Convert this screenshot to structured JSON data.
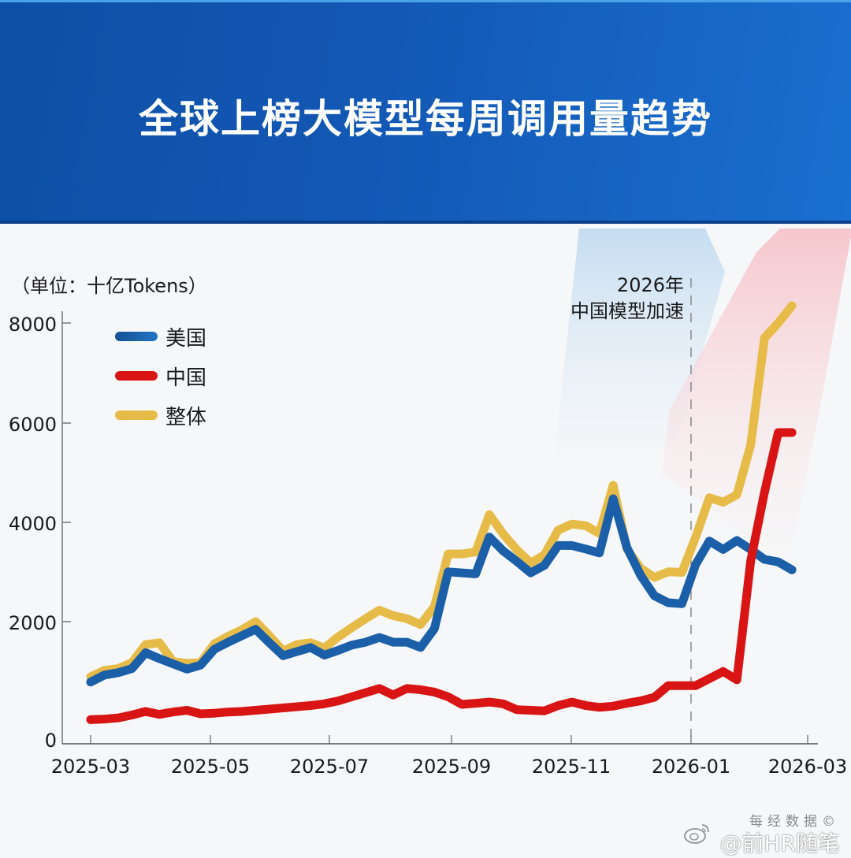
{
  "header": {
    "title": "全球上榜大模型每周调用量趋势"
  },
  "chart": {
    "unit_label": "（单位：十亿Tokens）",
    "annotation_line1": "2026年",
    "annotation_line2": "中国模型加速",
    "legend": [
      {
        "label": "美国",
        "color": "#1a5fa8"
      },
      {
        "label": "中国",
        "color": "#d81414"
      },
      {
        "label": "整体",
        "color": "#e6bb47"
      }
    ]
  },
  "watermark": {
    "top": "每经数据©",
    "bottom": "@前HR随笔"
  },
  "chart_data": {
    "type": "line",
    "title": "全球上榜大模型每周调用量趋势",
    "xlabel": "",
    "ylabel": "（单位：十亿Tokens）",
    "ylim": [
      0,
      8000
    ],
    "yticks": [
      0,
      2000,
      4000,
      6000,
      8000
    ],
    "xticks": [
      "2025-03",
      "2025-05",
      "2025-07",
      "2025-09",
      "2025-11",
      "2026-01",
      "2026-03"
    ],
    "grid": false,
    "legend_position": "upper left",
    "annotations": [
      {
        "text": "2026年 中国模型加速",
        "x": "2026-01",
        "style": "dashed vertical line"
      }
    ],
    "x": [
      "2025-03-01",
      "2025-03-08",
      "2025-03-15",
      "2025-03-22",
      "2025-03-29",
      "2025-04-05",
      "2025-04-12",
      "2025-04-19",
      "2025-04-26",
      "2025-05-03",
      "2025-05-10",
      "2025-05-17",
      "2025-05-24",
      "2025-05-31",
      "2025-06-07",
      "2025-06-14",
      "2025-06-21",
      "2025-06-28",
      "2025-07-05",
      "2025-07-12",
      "2025-07-19",
      "2025-07-26",
      "2025-08-02",
      "2025-08-09",
      "2025-08-16",
      "2025-08-23",
      "2025-08-30",
      "2025-09-06",
      "2025-09-13",
      "2025-09-20",
      "2025-09-27",
      "2025-10-04",
      "2025-10-11",
      "2025-10-18",
      "2025-10-25",
      "2025-11-01",
      "2025-11-08",
      "2025-11-15",
      "2025-11-22",
      "2025-11-29",
      "2025-12-06",
      "2025-12-13",
      "2025-12-20",
      "2025-12-27",
      "2026-01-03",
      "2026-01-10",
      "2026-01-17",
      "2026-01-24",
      "2026-01-31",
      "2026-02-07",
      "2026-02-14",
      "2026-02-21"
    ],
    "series": [
      {
        "name": "美国",
        "color": "#1a5fa8",
        "values": [
          970,
          1090,
          1130,
          1200,
          1470,
          1370,
          1280,
          1190,
          1260,
          1530,
          1650,
          1760,
          1870,
          1640,
          1420,
          1490,
          1560,
          1430,
          1510,
          1600,
          1650,
          1730,
          1650,
          1650,
          1560,
          1880,
          3000,
          2980,
          2960,
          3700,
          3420,
          3210,
          2980,
          3130,
          3530,
          3530,
          3460,
          3380,
          4470,
          3490,
          2930,
          2520,
          2380,
          2360,
          3150,
          3620,
          3450,
          3630,
          3450,
          3250,
          3200,
          3040
        ]
      },
      {
        "name": "中国",
        "color": "#d81414",
        "values": [
          330,
          340,
          360,
          410,
          470,
          420,
          460,
          490,
          430,
          440,
          460,
          470,
          490,
          510,
          530,
          550,
          570,
          600,
          650,
          720,
          790,
          860,
          750,
          860,
          840,
          800,
          720,
          590,
          610,
          630,
          600,
          500,
          490,
          480,
          570,
          630,
          570,
          540,
          560,
          610,
          650,
          710,
          910,
          910,
          910,
          1030,
          1150,
          1010,
          3220,
          4600,
          5800,
          5800
        ]
      },
      {
        "name": "整体",
        "color": "#e6bb47",
        "values": [
          1060,
          1170,
          1200,
          1300,
          1610,
          1640,
          1320,
          1290,
          1300,
          1620,
          1750,
          1860,
          2000,
          1760,
          1500,
          1610,
          1640,
          1550,
          1740,
          1900,
          2060,
          2230,
          2120,
          2060,
          1950,
          2300,
          3360,
          3360,
          3400,
          4150,
          3760,
          3440,
          3180,
          3340,
          3840,
          3960,
          3930,
          3770,
          4740,
          3460,
          3070,
          2890,
          3000,
          2990,
          3700,
          4490,
          4400,
          4550,
          5550,
          7700,
          8000,
          9000
        ]
      }
    ]
  }
}
